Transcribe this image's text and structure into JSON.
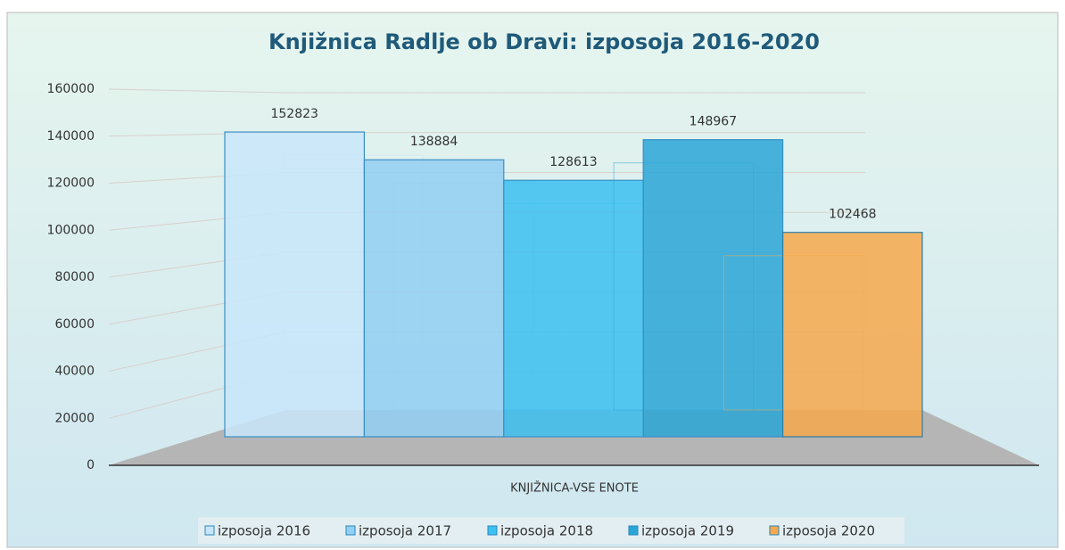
{
  "chart_data": {
    "type": "bar3d",
    "title": "Knjižnica Radlje ob Dravi: izposoja 2016-2020",
    "categories": [
      "KNJIŽNICA-VSE ENOTE"
    ],
    "series": [
      {
        "name": "izposoja 2016",
        "color": "#c8e6fa",
        "values": [
          152823
        ]
      },
      {
        "name": "izposoja 2017",
        "color": "#92cff2",
        "values": [
          138884
        ]
      },
      {
        "name": "izposoja 2018",
        "color": "#3cc0f0",
        "values": [
          128613
        ]
      },
      {
        "name": "izposoja 2019",
        "color": "#2aa6d6",
        "values": [
          148967
        ]
      },
      {
        "name": "izposoja 2020",
        "color": "#f6a84c",
        "values": [
          102468
        ]
      }
    ],
    "ylim": [
      0,
      160000
    ],
    "yticks": [
      0,
      20000,
      40000,
      60000,
      80000,
      100000,
      120000,
      140000,
      160000
    ],
    "grid": true,
    "legend": "bottom"
  }
}
